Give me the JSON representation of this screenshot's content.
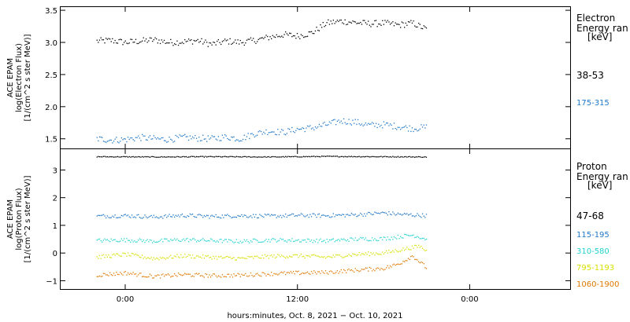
{
  "chart_data": [
    {
      "type": "scatter",
      "title": "",
      "ylabel": [
        "ACE EPAM",
        "log(Electron Flux)",
        "[1/(cm^2 s ster MeV)]"
      ],
      "ylim": [
        1.35,
        3.55
      ],
      "yticks": [
        1.5,
        2.0,
        2.5,
        3.0,
        3.5
      ],
      "ytick_labels": [
        "1.5",
        "2.0",
        "2.5",
        "3.0",
        "3.5"
      ],
      "legend": {
        "title_lines": [
          "Electron",
          "Energy ran",
          "[keV]"
        ],
        "placement": "right",
        "entries": [
          "38-53",
          "175-315"
        ]
      },
      "series": [
        {
          "name": "38-53",
          "color": "#000000",
          "x_hours": [
            -2.0,
            -1.0,
            0.0,
            1.0,
            2.0,
            3.0,
            4.0,
            5.0,
            6.0,
            7.0,
            8.0,
            9.0,
            10.0,
            11.0,
            12.0,
            13.0,
            14.0,
            15.0,
            16.0,
            17.0,
            18.0,
            19.0,
            20.0,
            21.0
          ],
          "values": [
            3.02,
            3.03,
            3.0,
            3.02,
            3.04,
            3.0,
            3.01,
            3.03,
            2.97,
            3.02,
            3.0,
            3.03,
            3.08,
            3.12,
            3.1,
            3.15,
            3.3,
            3.33,
            3.31,
            3.29,
            3.3,
            3.27,
            3.3,
            3.2
          ]
        },
        {
          "name": "175-315",
          "color": "#1f77c8",
          "x_hours": [
            -2.0,
            -1.0,
            0.0,
            1.0,
            2.0,
            3.0,
            4.0,
            5.0,
            6.0,
            7.0,
            8.0,
            9.0,
            10.0,
            11.0,
            12.0,
            13.0,
            14.0,
            15.0,
            16.0,
            17.0,
            18.0,
            19.0,
            20.0,
            21.0
          ],
          "values": [
            1.5,
            1.48,
            1.49,
            1.52,
            1.5,
            1.49,
            1.52,
            1.51,
            1.5,
            1.53,
            1.5,
            1.58,
            1.62,
            1.6,
            1.65,
            1.67,
            1.72,
            1.78,
            1.76,
            1.71,
            1.72,
            1.69,
            1.66,
            1.68
          ]
        }
      ]
    },
    {
      "type": "scatter",
      "title": "",
      "ylabel": [
        "ACE EPAM",
        "log(Proton Flux)",
        "[1/(cm^2 s ster MeV)]"
      ],
      "ylim": [
        -1.3,
        3.75
      ],
      "yticks": [
        -1,
        0,
        1,
        2,
        3
      ],
      "ytick_labels": [
        "−1",
        "0",
        "1",
        "2",
        "3"
      ],
      "legend": {
        "title_lines": [
          "Proton",
          "Energy ran",
          "[keV]"
        ],
        "placement": "right",
        "entries": [
          "47-68",
          "115-195",
          "310-580",
          "795-1193",
          "1060-1900"
        ]
      },
      "series": [
        {
          "name": "47-68",
          "color": "#000000",
          "x_hours": [
            -2.0,
            2.0,
            6.0,
            10.0,
            14.0,
            18.0,
            21.0
          ],
          "values": [
            3.48,
            3.47,
            3.48,
            3.47,
            3.49,
            3.48,
            3.47
          ]
        },
        {
          "name": "115-195",
          "color": "#1f77c8",
          "x_hours": [
            -2.0,
            0.0,
            2.0,
            4.0,
            6.0,
            8.0,
            10.0,
            12.0,
            14.0,
            16.0,
            18.0,
            19.0,
            21.0
          ],
          "values": [
            1.33,
            1.35,
            1.3,
            1.36,
            1.32,
            1.35,
            1.33,
            1.36,
            1.35,
            1.38,
            1.45,
            1.4,
            1.35
          ]
        },
        {
          "name": "310-580",
          "color": "#22d3cf",
          "x_hours": [
            -2.0,
            0.0,
            2.0,
            4.0,
            6.0,
            8.0,
            10.0,
            12.0,
            14.0,
            16.0,
            18.0,
            20.0,
            21.0
          ],
          "values": [
            0.45,
            0.47,
            0.43,
            0.48,
            0.45,
            0.42,
            0.47,
            0.46,
            0.44,
            0.5,
            0.52,
            0.65,
            0.5
          ]
        },
        {
          "name": "795-1193",
          "color": "#d8e000",
          "x_hours": [
            -2.0,
            0.0,
            2.0,
            4.0,
            6.0,
            8.0,
            10.0,
            12.0,
            14.0,
            16.0,
            18.0,
            19.5,
            20.5,
            21.0
          ],
          "values": [
            -0.15,
            -0.05,
            -0.2,
            -0.1,
            -0.15,
            -0.2,
            -0.12,
            -0.1,
            -0.15,
            -0.05,
            0.0,
            0.15,
            0.25,
            0.05
          ]
        },
        {
          "name": "1060-1900",
          "color": "#e07800",
          "x_hours": [
            -2.0,
            0.0,
            2.0,
            4.0,
            6.0,
            8.0,
            10.0,
            12.0,
            14.0,
            16.0,
            18.0,
            19.0,
            20.0,
            21.0
          ],
          "values": [
            -0.8,
            -0.72,
            -0.85,
            -0.78,
            -0.82,
            -0.8,
            -0.75,
            -0.72,
            -0.7,
            -0.62,
            -0.55,
            -0.4,
            -0.1,
            -0.55
          ]
        }
      ]
    }
  ],
  "x_axis": {
    "label": "hours:minutes, Oct.  8, 2021 − Oct. 10, 2021",
    "range_hours": [
      -4.5,
      31.0
    ],
    "ticks_hours": [
      0,
      12,
      24
    ],
    "tick_labels": [
      "0:00",
      "12:00",
      "0:00"
    ]
  }
}
